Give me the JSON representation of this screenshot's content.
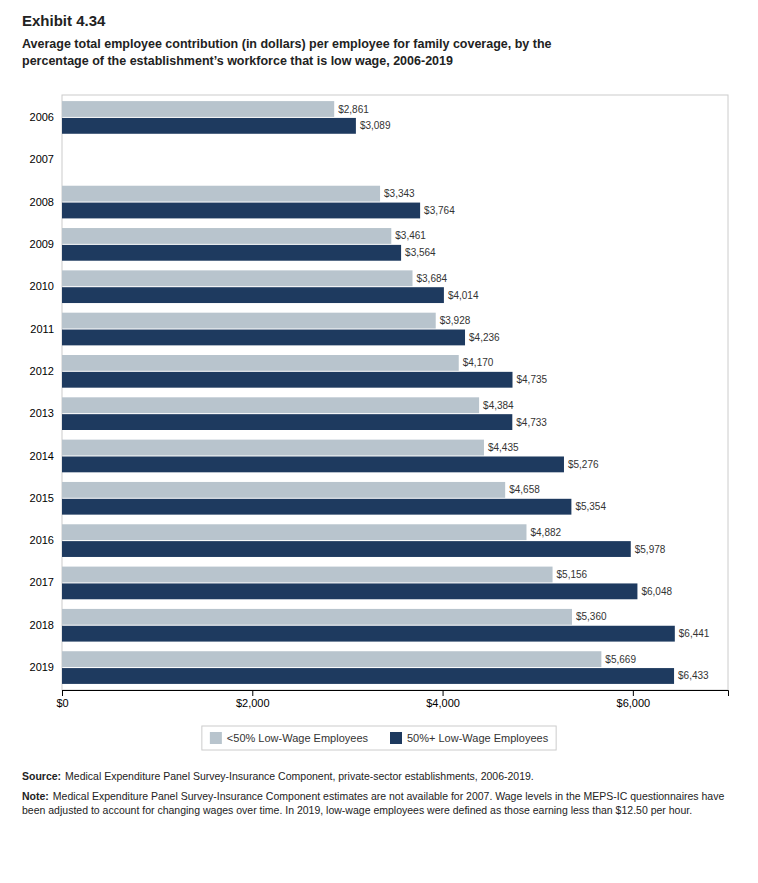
{
  "chart_data": {
    "type": "bar",
    "orientation": "horizontal",
    "title": "Exhibit 4.34",
    "subtitle": "Average total employee contribution (in dollars) per employee for family coverage, by the\npercentage of the establishment’s workforce that is low wage, 2006-2019",
    "categories": [
      "2006",
      "2007",
      "2008",
      "2009",
      "2010",
      "2011",
      "2012",
      "2013",
      "2014",
      "2015",
      "2016",
      "2017",
      "2018",
      "2019"
    ],
    "series": [
      {
        "name": "<50% Low-Wage Employees",
        "color": "#b8c4cd",
        "values": [
          2861,
          null,
          3343,
          3461,
          3684,
          3928,
          4170,
          4384,
          4435,
          4658,
          4882,
          5156,
          5360,
          5669
        ],
        "value_labels": [
          "$2,861",
          null,
          "$3,343",
          "$3,461",
          "$3,684",
          "$3,928",
          "$4,170",
          "$4,384",
          "$4,435",
          "$4,658",
          "$4,882",
          "$5,156",
          "$5,360",
          "$5,669"
        ]
      },
      {
        "name": "50%+ Low-Wage Employees",
        "color": "#1e3a5f",
        "values": [
          3089,
          null,
          3764,
          3564,
          4014,
          4236,
          4735,
          4733,
          5276,
          5354,
          5978,
          6048,
          6441,
          6433
        ],
        "value_labels": [
          "$3,089",
          null,
          "$3,764",
          "$3,564",
          "$4,014",
          "$4,236",
          "$4,735",
          "$4,733",
          "$5,276",
          "$5,354",
          "$5,978",
          "$6,048",
          "$6,441",
          "$6,433"
        ]
      }
    ],
    "xlim": [
      0,
      7000
    ],
    "xticks": [
      {
        "value": 0,
        "label": "$0"
      },
      {
        "value": 2000,
        "label": "$2,000"
      },
      {
        "value": 4000,
        "label": "$4,000"
      },
      {
        "value": 6000,
        "label": "$6,000"
      }
    ],
    "data_labels": true,
    "grid": false,
    "legend": "bottom",
    "annotations": [
      {
        "label": "Source:",
        "text": "Medical Expenditure Panel Survey-Insurance Component, private-sector establishments, 2006-2019."
      },
      {
        "label": "Note:",
        "text": "Medical Expenditure Panel Survey-Insurance Component estimates are not available for 2007. Wage levels in the MEPS-IC questionnaires have been adjusted to account for changing wages over time. In 2019, low-wage employees were defined as those earning less than $12.50 per hour."
      }
    ]
  }
}
